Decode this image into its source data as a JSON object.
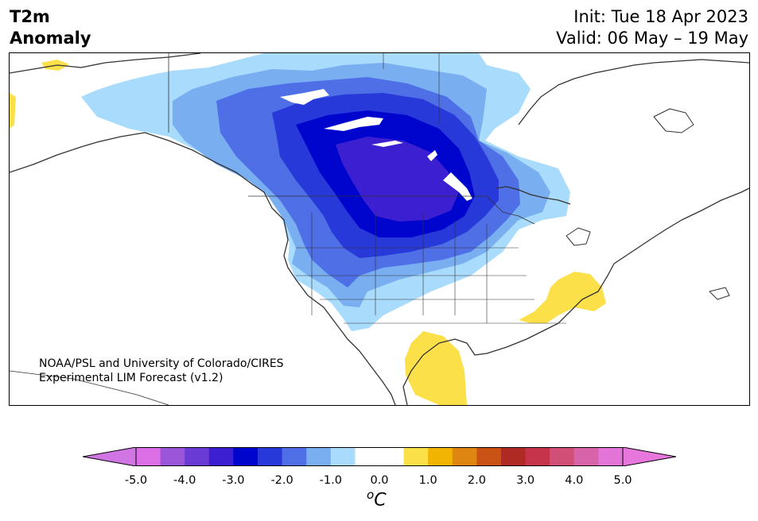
{
  "header": {
    "variable_line1": "T2m",
    "variable_line2": "Anomaly",
    "init": "Init: Tue 18 Apr 2023",
    "valid": "Valid: 06 May – 19 May"
  },
  "credit": {
    "line1": "NOAA/PSL and University of Colorado/CIRES",
    "line2": "Experimental LIM Forecast (v1.2)"
  },
  "colorbar": {
    "unit_base": "C",
    "unit_sup": "o",
    "tick_labels": [
      "-5.0",
      "-4.0",
      "-3.0",
      "-2.0",
      "-1.0",
      "0.0",
      "1.0",
      "2.0",
      "3.0",
      "4.0",
      "5.0"
    ],
    "colors": [
      "#dd6fe6",
      "#9a55d8",
      "#6b3bd6",
      "#3b1fd1",
      "#0005cd",
      "#2739d9",
      "#4e6fe6",
      "#79aef0",
      "#a9dcfc",
      "#ffffff",
      "#ffffff",
      "#fbe04a",
      "#f1b400",
      "#de8611",
      "#c95214",
      "#b02a24",
      "#c6344c",
      "#d24f77",
      "#d863a8",
      "#e374d8"
    ],
    "extend_low_color": "#d174e4",
    "extend_high_color": "#e776dd"
  },
  "map": {
    "region": "North America",
    "anomaly_colors": {
      "cold_1": "#a9dcfc",
      "cold_2": "#79aef0",
      "cold_3": "#4e6fe6",
      "cold_4": "#2739d9",
      "cold_5": "#0005cd",
      "cold_6": "#3b1fd1",
      "warm_1": "#fbe04a",
      "land_neutral": "#ffffff",
      "coastline": "#333333"
    }
  }
}
